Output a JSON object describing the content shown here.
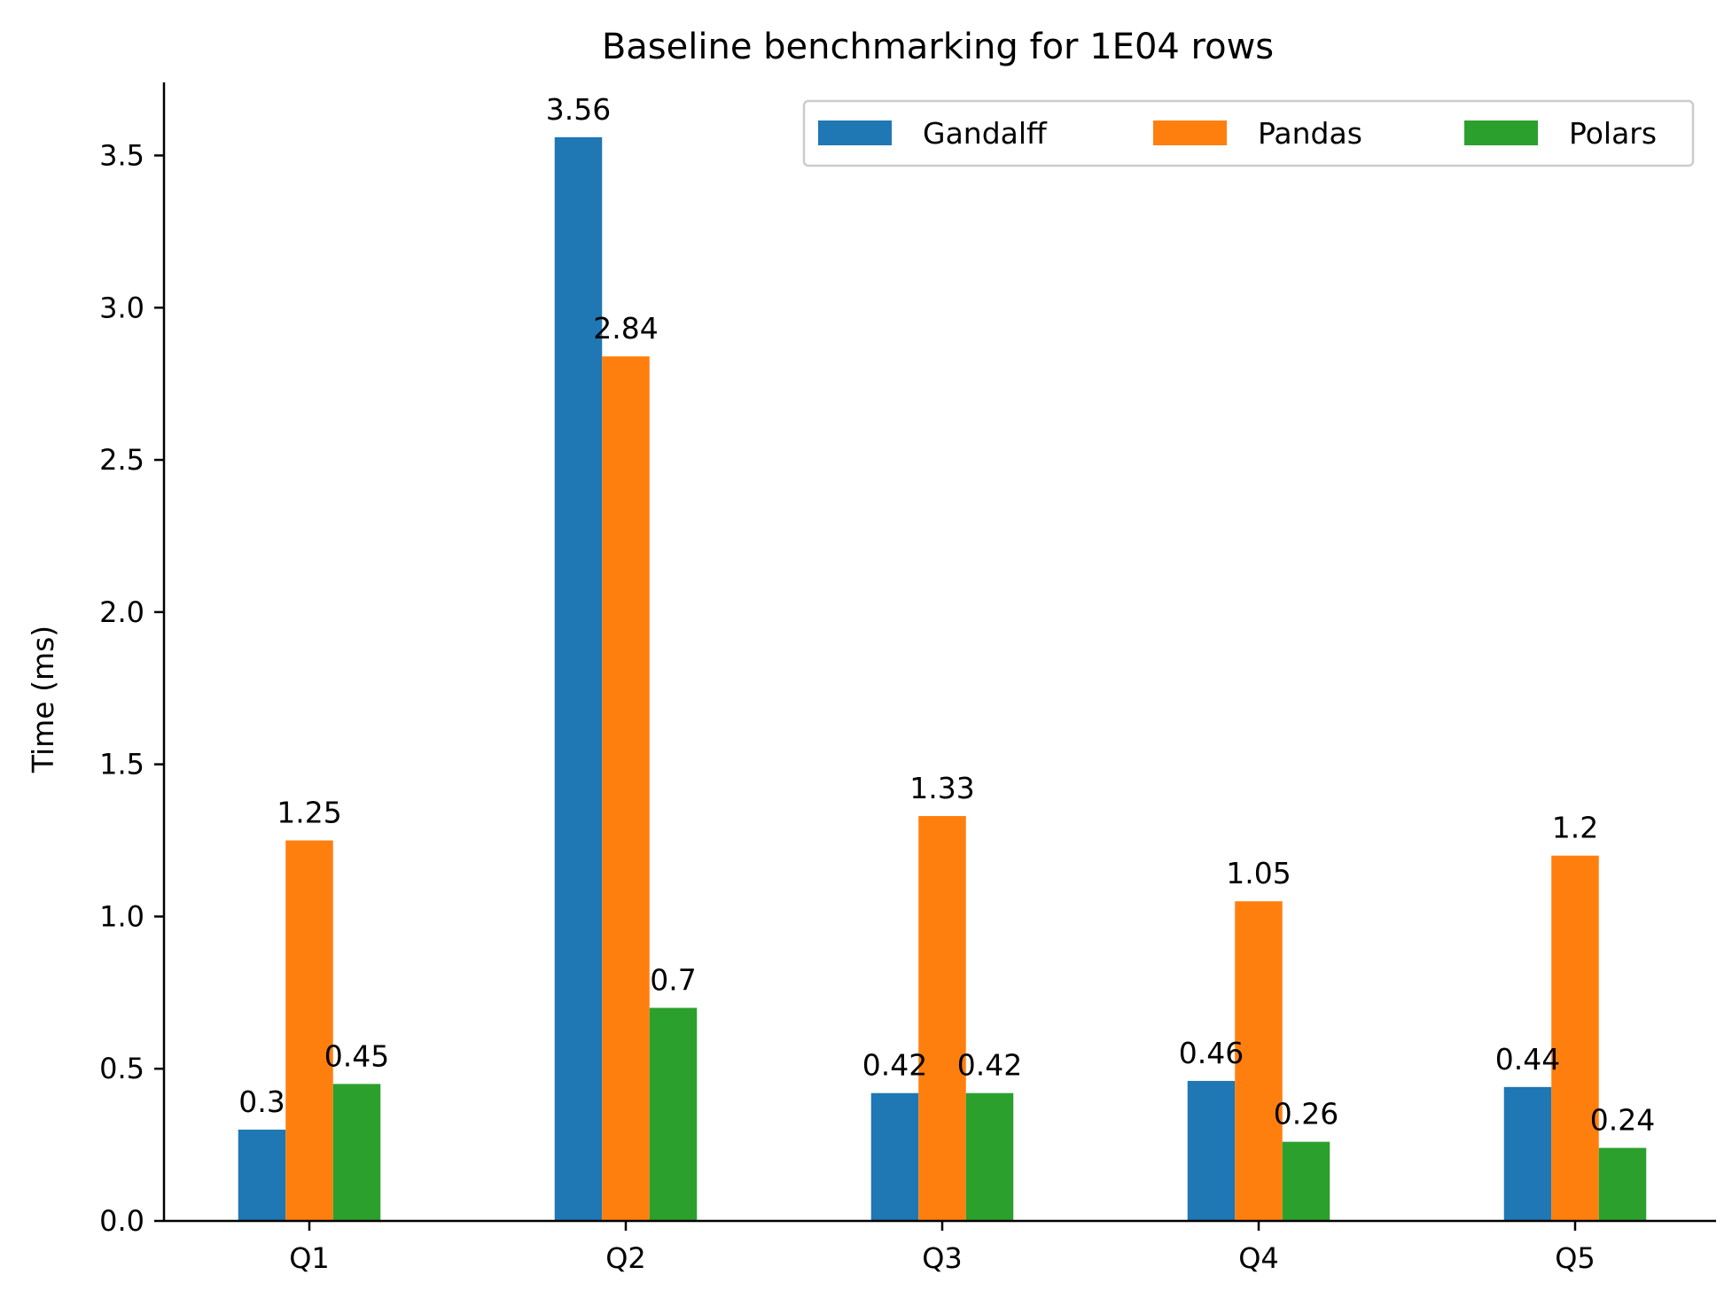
{
  "chart_data": {
    "type": "bar",
    "title": "Baseline benchmarking for 1E04 rows",
    "xlabel": "",
    "ylabel": "Time (ms)",
    "categories": [
      "Q1",
      "Q2",
      "Q3",
      "Q4",
      "Q5"
    ],
    "series": [
      {
        "name": "Gandalff",
        "color": "#1f77b4",
        "values": [
          0.3,
          3.56,
          0.42,
          0.46,
          0.44
        ],
        "labels": [
          "0.3",
          "3.56",
          "0.42",
          "0.46",
          "0.44"
        ]
      },
      {
        "name": "Pandas",
        "color": "#ff7f0e",
        "values": [
          1.25,
          2.84,
          1.33,
          1.05,
          1.2
        ],
        "labels": [
          "1.25",
          "2.84",
          "1.33",
          "1.05",
          "1.2"
        ]
      },
      {
        "name": "Polars",
        "color": "#2ca02c",
        "values": [
          0.45,
          0.7,
          0.42,
          0.26,
          0.24
        ],
        "labels": [
          "0.45",
          "0.7",
          "0.42",
          "0.26",
          "0.24"
        ]
      }
    ],
    "ylim": [
      0,
      3.74
    ],
    "yticks": [
      0.0,
      0.5,
      1.0,
      1.5,
      2.0,
      2.5,
      3.0,
      3.5
    ],
    "ytick_labels": [
      "0.0",
      "0.5",
      "1.0",
      "1.5",
      "2.0",
      "2.5",
      "3.0",
      "3.5"
    ],
    "grid": false,
    "legend": {
      "placement": "top-right",
      "columns": 3
    }
  }
}
